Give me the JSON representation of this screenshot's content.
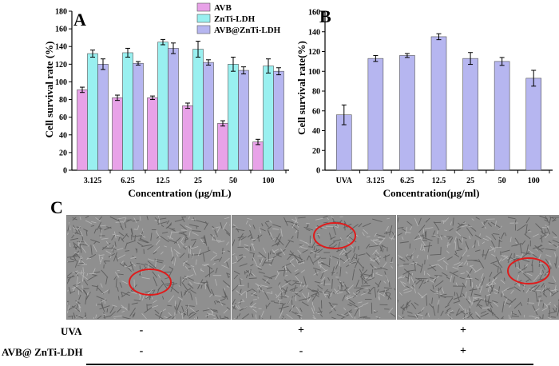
{
  "chart_data": [
    {
      "type": "bar",
      "panel_label": "A",
      "categories": [
        "3.125",
        "6.25",
        "12.5",
        "25",
        "50",
        "100"
      ],
      "series": [
        {
          "name": "AVB",
          "color": "#e8a2e8",
          "values": [
            91,
            82,
            82,
            73,
            53,
            32
          ],
          "errors": [
            3,
            3,
            2,
            3,
            3,
            3
          ]
        },
        {
          "name": "ZnTi-LDH",
          "color": "#99f0f0",
          "values": [
            132,
            133,
            145,
            137,
            120,
            118
          ],
          "errors": [
            4,
            5,
            3,
            9,
            8,
            8
          ]
        },
        {
          "name": "AVB@ZnTi-LDH",
          "color": "#b6b6f0",
          "values": [
            120,
            121,
            138,
            122,
            113,
            112
          ],
          "errors": [
            6,
            2,
            6,
            3,
            4,
            4
          ]
        }
      ],
      "xlabel": "Concentration (µg/mL)",
      "ylabel": "Cell survival rate (%)",
      "ylim": [
        0,
        180
      ],
      "yticks": [
        0,
        20,
        40,
        60,
        80,
        100,
        120,
        140,
        160,
        180
      ],
      "legend_position": "top-right",
      "grid": false
    },
    {
      "type": "bar",
      "panel_label": "B",
      "categories": [
        "UVA",
        "3.125",
        "6.25",
        "12.5",
        "25",
        "50",
        "100"
      ],
      "series": [
        {
          "color": "#b6b6f0",
          "values": [
            56,
            113,
            116,
            135,
            113,
            110,
            93
          ],
          "errors": [
            10,
            3,
            2,
            3,
            6,
            4,
            8
          ]
        }
      ],
      "xlabel": "Concentration(µg/ml)",
      "ylabel": "Cell survival rate(%)",
      "ylim": [
        0,
        160
      ],
      "yticks": [
        0,
        20,
        40,
        60,
        80,
        100,
        120,
        140,
        160
      ],
      "grid": false
    }
  ],
  "panel_c": {
    "label": "C",
    "rows": [
      {
        "label": "UVA",
        "values": [
          "-",
          "+",
          "+"
        ]
      },
      {
        "label": "AVB@ ZnTi-LDH",
        "values": [
          "-",
          "-",
          "+"
        ]
      }
    ],
    "highlight_color": "#e01b1b"
  }
}
